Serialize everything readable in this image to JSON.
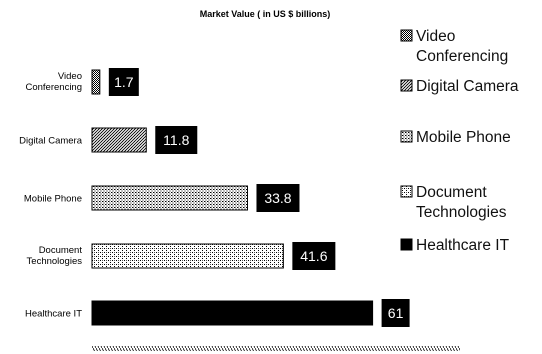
{
  "chart_data": {
    "type": "bar",
    "orientation": "horizontal",
    "title": "Market Value ( in US $ billions)",
    "categories": [
      "Video Conferencing",
      "Digital Camera",
      "Mobile Phone",
      "Document Technologies",
      "Healthcare IT"
    ],
    "category_label_lines": [
      [
        "Video",
        "Conferencing"
      ],
      [
        "Digital Camera"
      ],
      [
        "Mobile Phone"
      ],
      [
        "Document",
        "Technologies"
      ],
      [
        "Healthcare IT"
      ]
    ],
    "values": [
      1.7,
      11.8,
      33.8,
      41.6,
      61
    ],
    "data_labels": [
      "1.7",
      "11.8",
      "33.8",
      "41.6",
      "61"
    ],
    "xlim": [
      0,
      80
    ],
    "grid": false,
    "legend": {
      "position": "right",
      "entries": [
        {
          "lines": [
            "Video",
            "Conferencing"
          ],
          "pattern": "dense-checker"
        },
        {
          "lines": [
            "Digital Camera"
          ],
          "pattern": "diagonal"
        },
        {
          "lines": [
            "Mobile Phone"
          ],
          "pattern": "dots"
        },
        {
          "lines": [
            "Document",
            "Technologies"
          ],
          "pattern": "light-dots"
        },
        {
          "lines": [
            "Healthcare IT"
          ],
          "pattern": "solid"
        }
      ]
    },
    "colors": {
      "bar_border": "#000000",
      "label_box": "#000000",
      "label_text": "#ffffff",
      "solid_fill": "#000000"
    }
  }
}
